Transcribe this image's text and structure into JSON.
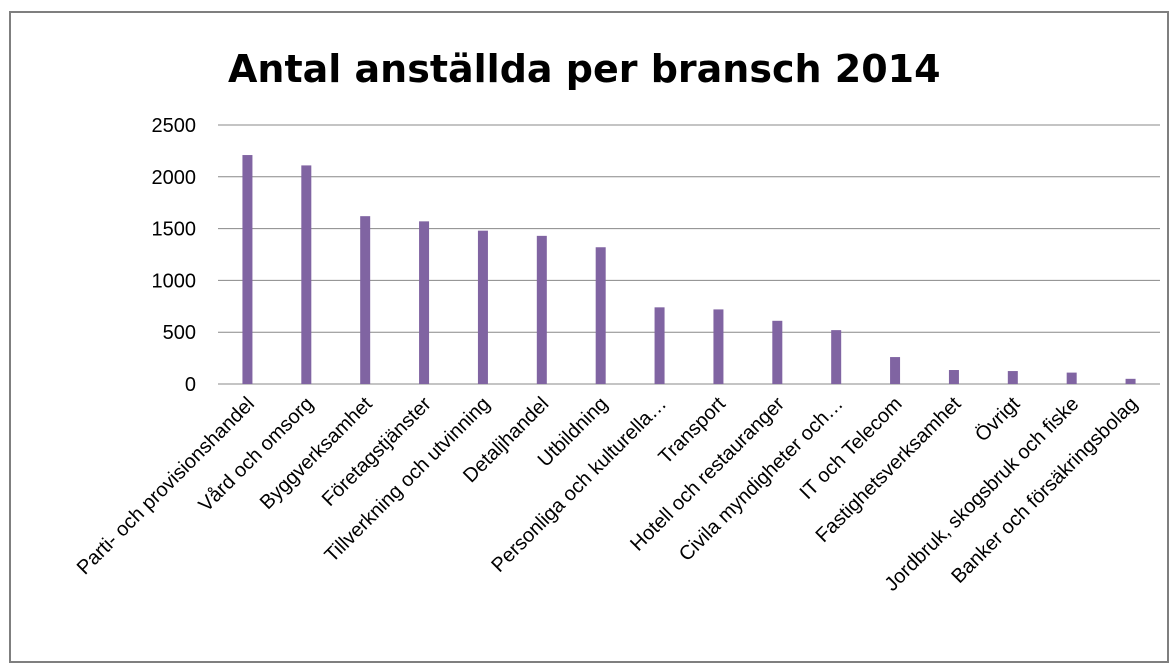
{
  "colors": {
    "bar": "#8064a2",
    "grid": "#888888",
    "text": "#000000"
  },
  "chart_data": {
    "type": "bar",
    "title": "Antal anställda per bransch 2014",
    "xlabel": "",
    "ylabel": "",
    "ylim": [
      0,
      2500
    ],
    "yticks": [
      0,
      500,
      1000,
      1500,
      2000,
      2500
    ],
    "grid": true,
    "categories": [
      "Parti- och provisionshandel",
      "Vård och omsorg",
      "Byggverksamhet",
      "Företagstjänster",
      "Tillverkning och utvinning",
      "Detaljhandel",
      "Utbildning",
      "Personliga och kulturella…",
      "Transport",
      "Hotell och restauranger",
      "Civila myndigheter och…",
      "IT och Telecom",
      "Fastighetsverksamhet",
      "Övrigt",
      "Jordbruk, skogsbruk och fiske",
      "Banker och försäkringsbolag"
    ],
    "values": [
      2210,
      2110,
      1620,
      1570,
      1480,
      1430,
      1320,
      740,
      720,
      610,
      520,
      260,
      135,
      125,
      110,
      50
    ]
  }
}
